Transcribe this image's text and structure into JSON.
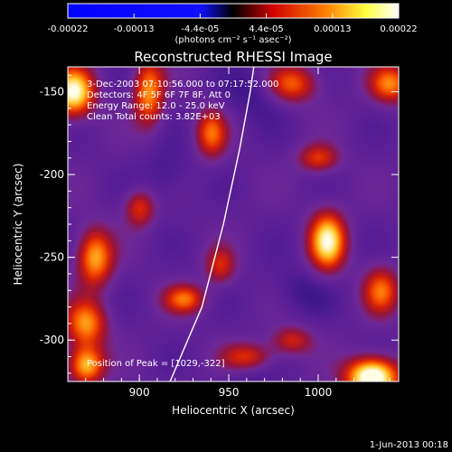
{
  "chart_data": {
    "type": "heatmap",
    "title": "Reconstructed RHESSI Image",
    "xlabel": "Heliocentric X (arcsec)",
    "ylabel": "Heliocentric Y (arcsec)",
    "xlim": [
      860,
      1045
    ],
    "ylim": [
      -325,
      -135
    ],
    "x_ticks": [
      900,
      950,
      1000
    ],
    "y_ticks": [
      -150,
      -200,
      -250,
      -300
    ],
    "x_tick_labels": [
      "900",
      "950",
      "1000"
    ],
    "y_tick_labels": [
      "-150",
      "-200",
      "-250",
      "-300"
    ],
    "colorbar": {
      "min": -0.00022,
      "max": 0.00022,
      "tick_labels": [
        "-0.00022",
        "-0.00013",
        "-4.4e-05",
        "4.4e-05",
        "0.00013",
        "0.00022"
      ],
      "unit_label": "(photons cm⁻² s⁻¹ asec⁻²)"
    },
    "info_lines": [
      "3-Dec-2003 07:10:56.000 to 07:17:52.000",
      "Detectors: 4F 5F 6F 7F 8F, Att 0",
      "Energy Range: 12.0 - 25.0 keV",
      "Clean    Total counts: 3.82E+03"
    ],
    "peak_label": "Position of Peak = [1029,-322]",
    "peak": [
      1029,
      -322
    ],
    "limb_curve": [
      [
        916,
        -328
      ],
      [
        935,
        -280
      ],
      [
        947,
        -230
      ],
      [
        956,
        -185
      ],
      [
        962,
        -150
      ],
      [
        966,
        -120
      ]
    ],
    "sources": [
      {
        "x": 1030,
        "y": -322,
        "a": 1.15,
        "sx": 10,
        "sy": 8
      },
      {
        "x": 863,
        "y": -150,
        "a": 0.95,
        "sx": 8,
        "sy": 10
      },
      {
        "x": 1005,
        "y": -240,
        "a": 0.9,
        "sx": 7,
        "sy": 12
      },
      {
        "x": 905,
        "y": -150,
        "a": 0.65,
        "sx": 6,
        "sy": 14
      },
      {
        "x": 875,
        "y": -250,
        "a": 0.7,
        "sx": 7,
        "sy": 12
      },
      {
        "x": 870,
        "y": -290,
        "a": 0.65,
        "sx": 8,
        "sy": 10
      },
      {
        "x": 940,
        "y": -175,
        "a": 0.55,
        "sx": 6,
        "sy": 10
      },
      {
        "x": 870,
        "y": -315,
        "a": 0.75,
        "sx": 7,
        "sy": 8
      },
      {
        "x": 985,
        "y": -145,
        "a": 0.55,
        "sx": 10,
        "sy": 8
      },
      {
        "x": 1040,
        "y": -145,
        "a": 0.6,
        "sx": 8,
        "sy": 8
      },
      {
        "x": 1035,
        "y": -270,
        "a": 0.55,
        "sx": 7,
        "sy": 10
      },
      {
        "x": 925,
        "y": -275,
        "a": 0.55,
        "sx": 8,
        "sy": 6
      },
      {
        "x": 960,
        "y": -310,
        "a": 0.45,
        "sx": 10,
        "sy": 6
      },
      {
        "x": 900,
        "y": -220,
        "a": 0.45,
        "sx": 6,
        "sy": 8
      },
      {
        "x": 1000,
        "y": -190,
        "a": 0.45,
        "sx": 8,
        "sy": 6
      },
      {
        "x": 945,
        "y": -255,
        "a": 0.4,
        "sx": 6,
        "sy": 8
      },
      {
        "x": 985,
        "y": -300,
        "a": 0.4,
        "sx": 8,
        "sy": 6
      }
    ]
  },
  "footer": {
    "timestamp": "1-Jun-2013 00:18"
  }
}
